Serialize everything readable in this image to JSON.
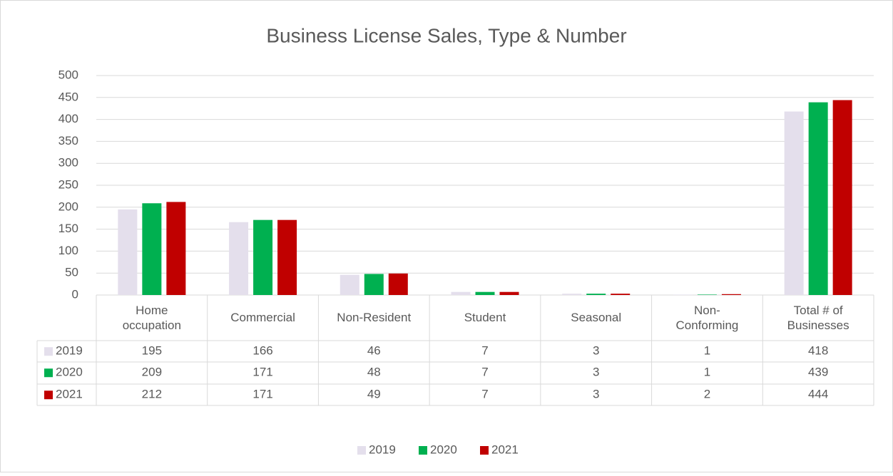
{
  "chart_data": {
    "type": "bar",
    "title": "Business License Sales, Type & Number",
    "categories": [
      "Home occupation",
      "Commercial",
      "Non-Resident",
      "Student",
      "Seasonal",
      "Non-Conforming",
      "Total # of Businesses"
    ],
    "series": [
      {
        "name": "2019",
        "color": "#e4dfec",
        "values": [
          195,
          166,
          46,
          7,
          3,
          1,
          418
        ]
      },
      {
        "name": "2020",
        "color": "#00b050",
        "values": [
          209,
          171,
          48,
          7,
          3,
          1,
          439
        ]
      },
      {
        "name": "2021",
        "color": "#c00000",
        "values": [
          212,
          171,
          49,
          7,
          3,
          2,
          444
        ]
      }
    ],
    "ylim": [
      0,
      500
    ],
    "yticks": [
      0,
      50,
      100,
      150,
      200,
      250,
      300,
      350,
      400,
      450,
      500
    ],
    "grid": true,
    "data_table": true,
    "legend": "bottom"
  }
}
